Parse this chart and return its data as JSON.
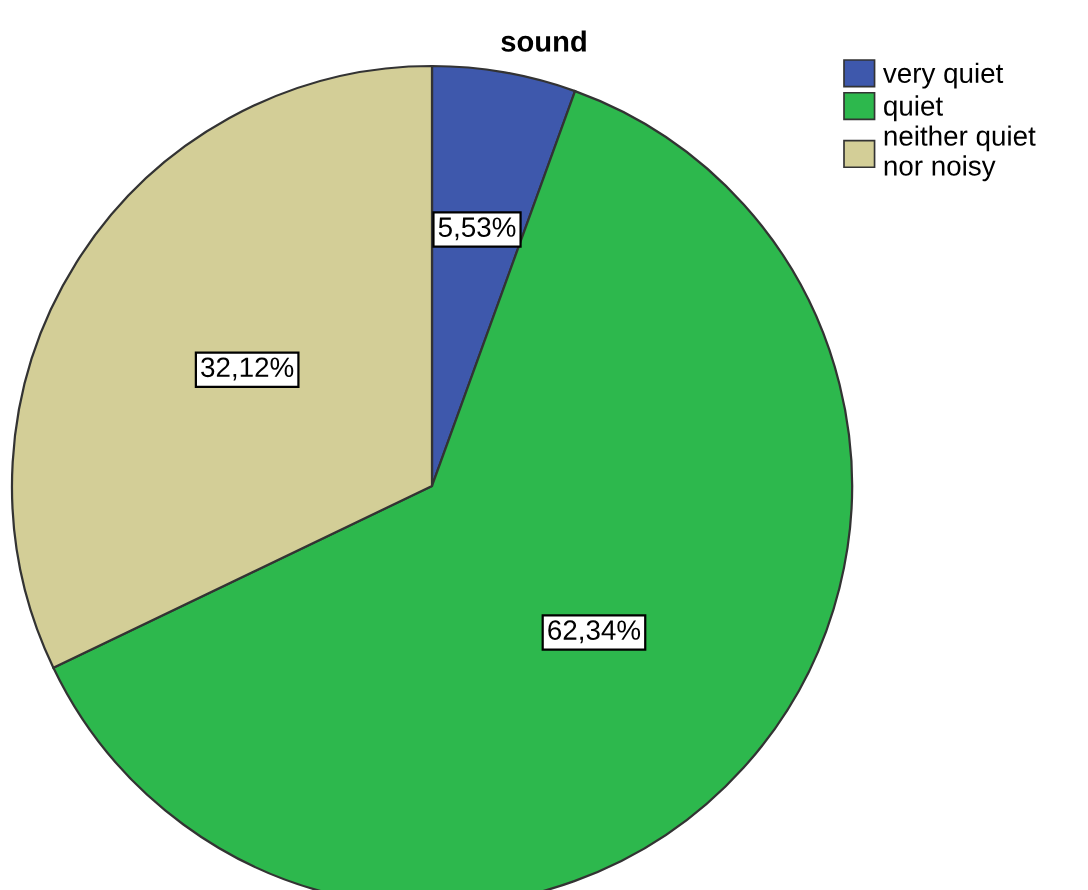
{
  "chart_data": {
    "type": "pie",
    "title": "sound",
    "categories": [
      "very quiet",
      "quiet",
      "neither quiet\nnor noisy"
    ],
    "values": [
      5.53,
      62.34,
      32.12
    ],
    "value_labels": [
      "5,53%",
      "62,34%",
      "32,12%"
    ],
    "colors": [
      "#3e58ac",
      "#2db84d",
      "#d3ce97"
    ],
    "legend": "top right"
  }
}
